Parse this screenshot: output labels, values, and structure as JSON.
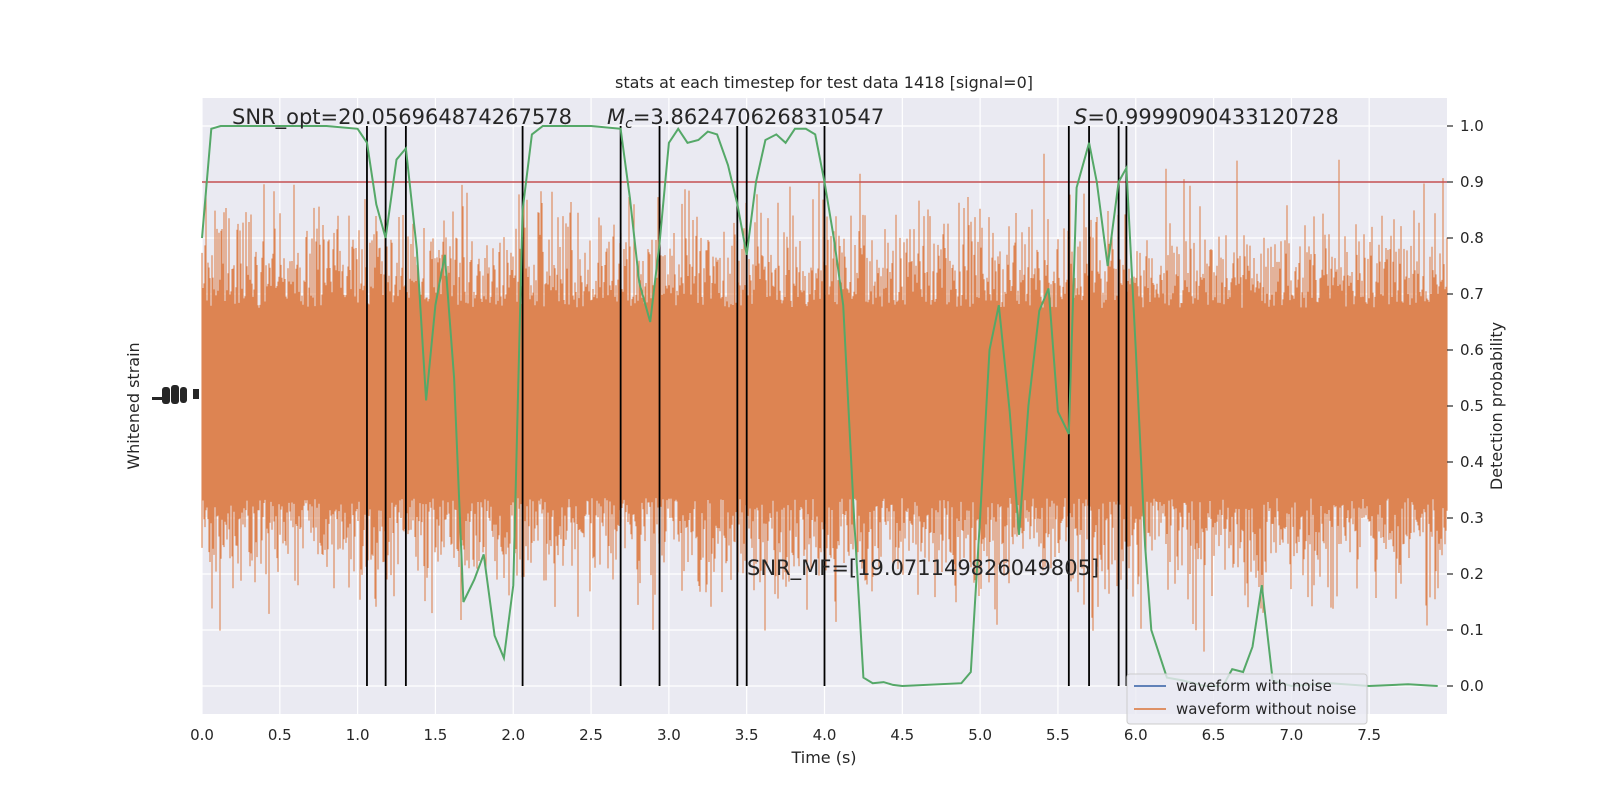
{
  "chart_data": {
    "type": "line",
    "title": "stats at each timestep for test data 1418 [signal=0]",
    "xlabel": "Time (s)",
    "ylabel_left": "Whitened strain",
    "ylabel_right": "Detection probability",
    "xlim": [
      0,
      8
    ],
    "ylim_right": [
      -0.05,
      1.05
    ],
    "x_ticks": [
      0.0,
      0.5,
      1.0,
      1.5,
      2.0,
      2.5,
      3.0,
      3.5,
      4.0,
      4.5,
      5.0,
      5.5,
      6.0,
      6.5,
      7.0,
      7.5
    ],
    "x_tick_labels": [
      "0.0",
      "0.5",
      "1.0",
      "1.5",
      "2.0",
      "2.5",
      "3.0",
      "3.5",
      "4.0",
      "4.5",
      "5.0",
      "5.5",
      "6.0",
      "6.5",
      "7.0",
      "7.5"
    ],
    "y_right_ticks": [
      0.0,
      0.1,
      0.2,
      0.3,
      0.4,
      0.5,
      0.6,
      0.7,
      0.8,
      0.9,
      1.0
    ],
    "y_right_tick_labels": [
      "0.0",
      "0.1",
      "0.2",
      "0.3",
      "0.4",
      "0.5",
      "0.6",
      "0.7",
      "0.8",
      "0.9",
      "1.0"
    ],
    "threshold": 0.9,
    "annotations": {
      "snr_opt": "SNR_opt=20.056964874267578",
      "mc_symbol": "M",
      "mc_subscript": "c",
      "mc_value": "=3.8624706268310547",
      "s_symbol": "S",
      "s_value": "=0.9999090433120728",
      "snr_mf": "SNR_MF=[19.071149826049805]"
    },
    "vertical_lines_x": [
      1.06,
      1.18,
      1.31,
      2.06,
      2.69,
      2.94,
      3.44,
      3.5,
      4.0,
      5.57,
      5.7,
      5.89,
      5.94
    ],
    "series": [
      {
        "name": "waveform with noise",
        "color": "#4c72b0",
        "note": "plotted beneath the noise-free trace"
      },
      {
        "name": "waveform without noise",
        "color": "#dd8452"
      },
      {
        "color": "#55a868",
        "points": [
          [
            0.0,
            0.8
          ],
          [
            0.06,
            0.995
          ],
          [
            0.12,
            1.0
          ],
          [
            0.3,
            1.0
          ],
          [
            0.6,
            1.0
          ],
          [
            0.8,
            1.0
          ],
          [
            1.0,
            0.995
          ],
          [
            1.06,
            0.97
          ],
          [
            1.12,
            0.86
          ],
          [
            1.18,
            0.8
          ],
          [
            1.25,
            0.94
          ],
          [
            1.31,
            0.96
          ],
          [
            1.38,
            0.78
          ],
          [
            1.44,
            0.51
          ],
          [
            1.5,
            0.68
          ],
          [
            1.56,
            0.77
          ],
          [
            1.62,
            0.55
          ],
          [
            1.68,
            0.15
          ],
          [
            1.75,
            0.19
          ],
          [
            1.81,
            0.235
          ],
          [
            1.88,
            0.09
          ],
          [
            1.94,
            0.05
          ],
          [
            2.0,
            0.18
          ],
          [
            2.06,
            0.85
          ],
          [
            2.12,
            0.985
          ],
          [
            2.19,
            1.0
          ],
          [
            2.5,
            1.0
          ],
          [
            2.69,
            0.995
          ],
          [
            2.75,
            0.87
          ],
          [
            2.81,
            0.72
          ],
          [
            2.88,
            0.65
          ],
          [
            2.94,
            0.79
          ],
          [
            3.0,
            0.97
          ],
          [
            3.06,
            0.995
          ],
          [
            3.12,
            0.97
          ],
          [
            3.19,
            0.975
          ],
          [
            3.25,
            0.99
          ],
          [
            3.31,
            0.985
          ],
          [
            3.38,
            0.93
          ],
          [
            3.44,
            0.86
          ],
          [
            3.5,
            0.77
          ],
          [
            3.56,
            0.9
          ],
          [
            3.62,
            0.975
          ],
          [
            3.69,
            0.985
          ],
          [
            3.75,
            0.97
          ],
          [
            3.81,
            0.995
          ],
          [
            3.88,
            0.995
          ],
          [
            3.94,
            0.985
          ],
          [
            4.0,
            0.9
          ],
          [
            4.06,
            0.8
          ],
          [
            4.12,
            0.68
          ],
          [
            4.19,
            0.3
          ],
          [
            4.25,
            0.015
          ],
          [
            4.31,
            0.005
          ],
          [
            4.38,
            0.007
          ],
          [
            4.44,
            0.002
          ],
          [
            4.5,
            0.0
          ],
          [
            4.88,
            0.005
          ],
          [
            4.94,
            0.025
          ],
          [
            5.0,
            0.3
          ],
          [
            5.06,
            0.6
          ],
          [
            5.12,
            0.68
          ],
          [
            5.19,
            0.49
          ],
          [
            5.25,
            0.27
          ],
          [
            5.31,
            0.5
          ],
          [
            5.38,
            0.67
          ],
          [
            5.44,
            0.71
          ],
          [
            5.5,
            0.49
          ],
          [
            5.57,
            0.45
          ],
          [
            5.62,
            0.89
          ],
          [
            5.7,
            0.97
          ],
          [
            5.75,
            0.9
          ],
          [
            5.82,
            0.75
          ],
          [
            5.89,
            0.9
          ],
          [
            5.94,
            0.925
          ],
          [
            6.0,
            0.6
          ],
          [
            6.06,
            0.25
          ],
          [
            6.1,
            0.1
          ],
          [
            6.2,
            0.015
          ],
          [
            6.3,
            0.01
          ],
          [
            6.44,
            0.0
          ],
          [
            6.56,
            0.0
          ],
          [
            6.62,
            0.03
          ],
          [
            6.69,
            0.025
          ],
          [
            6.75,
            0.07
          ],
          [
            6.81,
            0.18
          ],
          [
            6.88,
            0.01
          ],
          [
            7.0,
            0.0
          ],
          [
            7.25,
            0.005
          ],
          [
            7.5,
            0.0
          ],
          [
            7.75,
            0.003
          ],
          [
            7.94,
            0.0
          ]
        ]
      }
    ],
    "legend": {
      "position": "lower-right",
      "entries": [
        "waveform with noise",
        "waveform without noise"
      ]
    },
    "grid": true,
    "background": "#eaeaf2",
    "threshold_color": "#c44e52",
    "vline_color": "#000000"
  }
}
